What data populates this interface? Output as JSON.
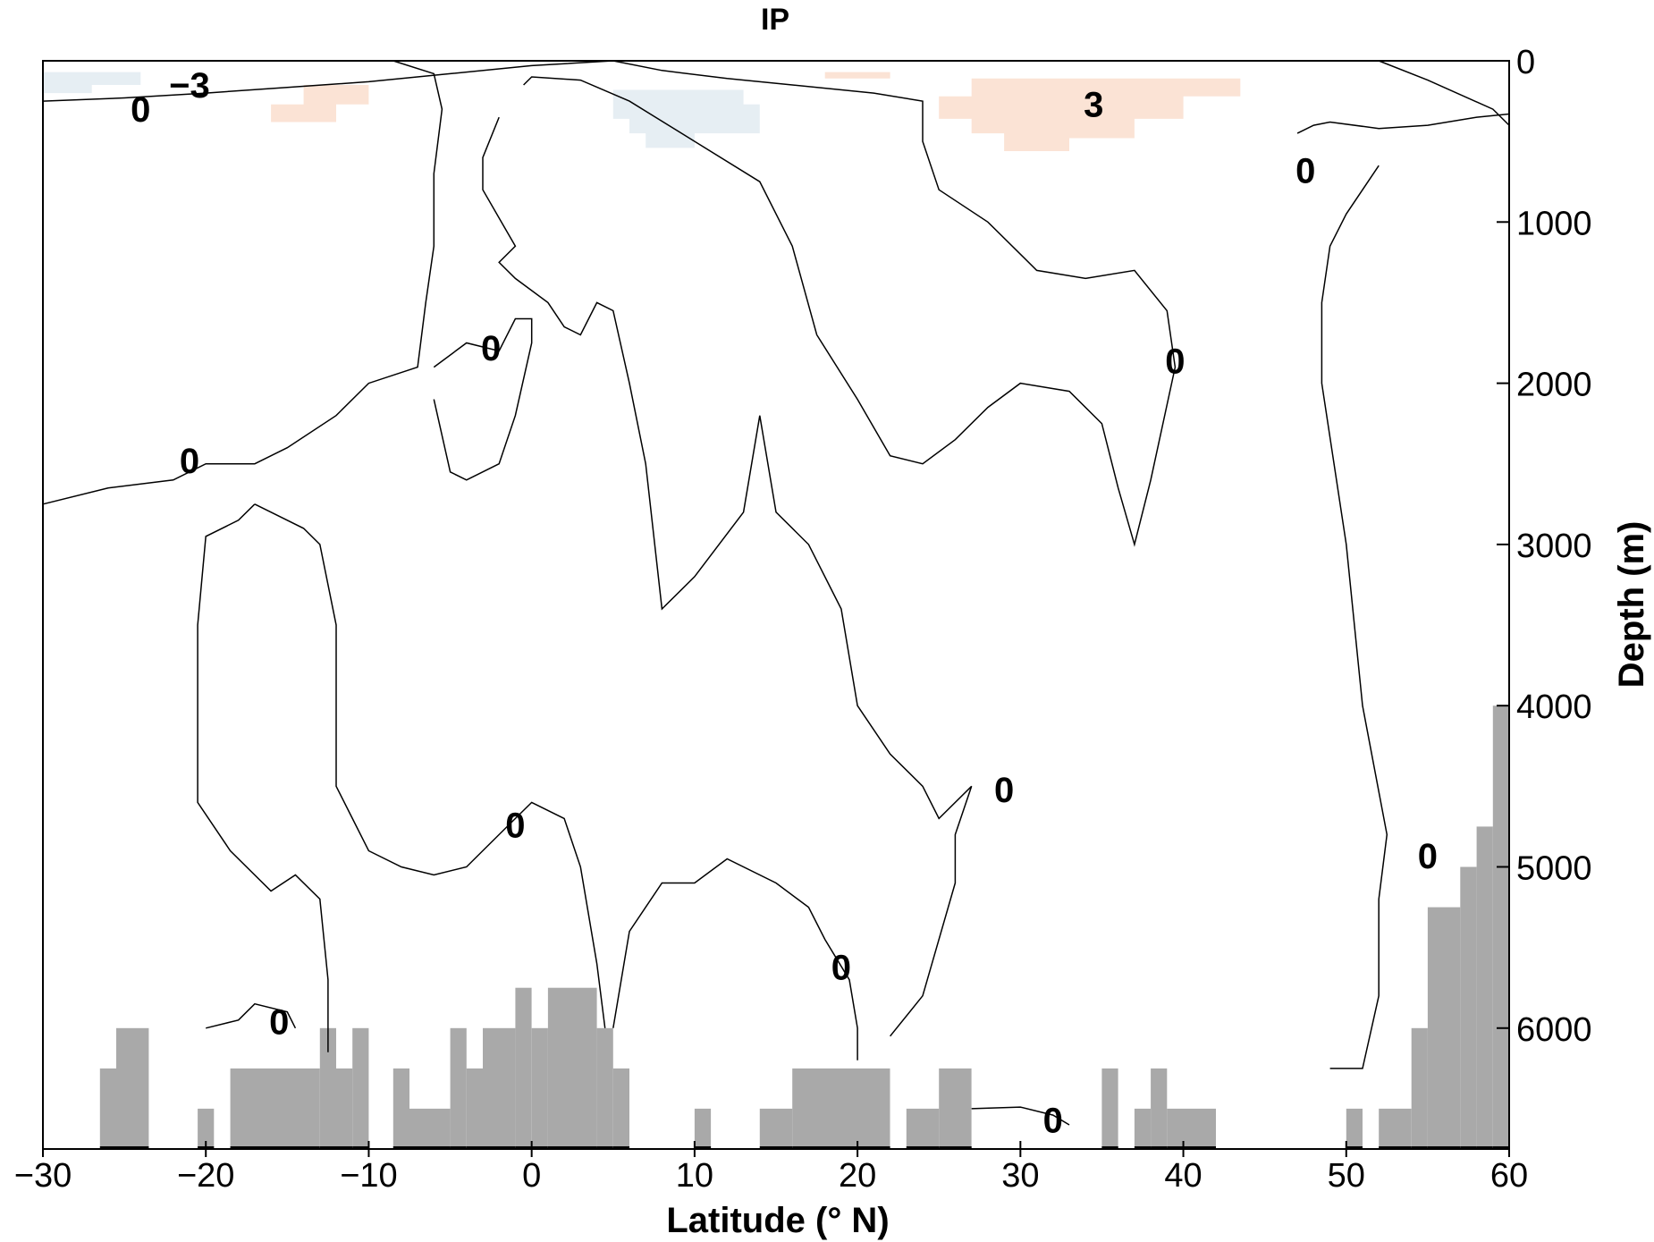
{
  "chart_data": {
    "type": "contour",
    "title": "IP",
    "xlabel": "Latitude (° N)",
    "ylabel": "Depth (m)",
    "xlim": [
      -30,
      60
    ],
    "ylim": [
      0,
      6750
    ],
    "y_axis_side": "right",
    "y_inverted": true,
    "x_ticks": [
      -30,
      -20,
      -10,
      0,
      10,
      20,
      30,
      40,
      50,
      60
    ],
    "x_tick_labels": [
      "−30",
      "−20",
      "−10",
      "0",
      "10",
      "20",
      "30",
      "40",
      "50",
      "60"
    ],
    "y_ticks": [
      0,
      1000,
      2000,
      3000,
      4000,
      5000,
      6000
    ],
    "y_tick_labels": [
      "0",
      "1000",
      "2000",
      "3000",
      "4000",
      "5000",
      "6000"
    ],
    "colors": {
      "positive_fill": "#fbe3d5",
      "negative_fill": "#e6eef3",
      "bathymetry": "#a9a9a9",
      "contour": "#000000"
    },
    "contour_labels": [
      {
        "text": "−3",
        "lat": -21,
        "depth": 150
      },
      {
        "text": "0",
        "lat": -24,
        "depth": 300
      },
      {
        "text": "3",
        "lat": 34.5,
        "depth": 270
      },
      {
        "text": "0",
        "lat": 47.5,
        "depth": 680
      },
      {
        "text": "0",
        "lat": -2.5,
        "depth": 1780
      },
      {
        "text": "0",
        "lat": 39.5,
        "depth": 1860
      },
      {
        "text": "0",
        "lat": -21,
        "depth": 2480
      },
      {
        "text": "0",
        "lat": 29,
        "depth": 4520
      },
      {
        "text": "0",
        "lat": -1,
        "depth": 4740
      },
      {
        "text": "0",
        "lat": 55,
        "depth": 4930
      },
      {
        "text": "0",
        "lat": 19,
        "depth": 5620
      },
      {
        "text": "0",
        "lat": -15.5,
        "depth": 5960
      },
      {
        "text": "0",
        "lat": 32,
        "depth": 6570
      }
    ],
    "anomaly_patches": [
      {
        "sign": "negative",
        "polygon": [
          [
            -30,
            70
          ],
          [
            -24,
            70
          ],
          [
            -24,
            150
          ],
          [
            -27,
            150
          ],
          [
            -27,
            200
          ],
          [
            -30,
            200
          ]
        ]
      },
      {
        "sign": "positive",
        "polygon": [
          [
            -14,
            150
          ],
          [
            -10,
            150
          ],
          [
            -10,
            270
          ],
          [
            -12,
            270
          ],
          [
            -12,
            380
          ],
          [
            -16,
            380
          ],
          [
            -16,
            270
          ],
          [
            -14,
            270
          ]
        ]
      },
      {
        "sign": "negative",
        "polygon": [
          [
            5,
            180
          ],
          [
            13,
            180
          ],
          [
            13,
            270
          ],
          [
            14,
            270
          ],
          [
            14,
            450
          ],
          [
            10,
            450
          ],
          [
            10,
            540
          ],
          [
            7,
            540
          ],
          [
            7,
            450
          ],
          [
            6,
            450
          ],
          [
            6,
            360
          ],
          [
            5,
            360
          ]
        ]
      },
      {
        "sign": "positive",
        "polygon": [
          [
            18,
            70
          ],
          [
            22,
            70
          ],
          [
            22,
            110
          ],
          [
            18,
            110
          ]
        ]
      },
      {
        "sign": "positive",
        "polygon": [
          [
            27,
            110
          ],
          [
            43.5,
            110
          ],
          [
            43.5,
            220
          ],
          [
            40,
            220
          ],
          [
            40,
            360
          ],
          [
            37,
            360
          ],
          [
            37,
            480
          ],
          [
            33,
            480
          ],
          [
            33,
            560
          ],
          [
            29,
            560
          ],
          [
            29,
            450
          ],
          [
            27,
            450
          ],
          [
            27,
            360
          ],
          [
            25,
            360
          ],
          [
            25,
            220
          ],
          [
            27,
            220
          ]
        ]
      }
    ],
    "bathymetry_bars": [
      {
        "lat_from": -26.5,
        "lat_to": -25.5,
        "depth_top": 6250
      },
      {
        "lat_from": -25.5,
        "lat_to": -23.5,
        "depth_top": 6000
      },
      {
        "lat_from": -20.5,
        "lat_to": -19.5,
        "depth_top": 6500
      },
      {
        "lat_from": -18.5,
        "lat_to": -13.0,
        "depth_top": 6250
      },
      {
        "lat_from": -13.0,
        "lat_to": -12.0,
        "depth_top": 6000
      },
      {
        "lat_from": -12.0,
        "lat_to": -11.0,
        "depth_top": 6250
      },
      {
        "lat_from": -11.0,
        "lat_to": -10.0,
        "depth_top": 6000
      },
      {
        "lat_from": -8.5,
        "lat_to": -7.5,
        "depth_top": 6250
      },
      {
        "lat_from": -7.5,
        "lat_to": -5.0,
        "depth_top": 6500
      },
      {
        "lat_from": -5.0,
        "lat_to": -4.0,
        "depth_top": 6000
      },
      {
        "lat_from": -4.0,
        "lat_to": -3.0,
        "depth_top": 6250
      },
      {
        "lat_from": -3.0,
        "lat_to": -1.0,
        "depth_top": 6000
      },
      {
        "lat_from": -1.0,
        "lat_to": 0.0,
        "depth_top": 5750
      },
      {
        "lat_from": 0.0,
        "lat_to": 1.0,
        "depth_top": 6000
      },
      {
        "lat_from": 1.0,
        "lat_to": 4.0,
        "depth_top": 5750
      },
      {
        "lat_from": 4.0,
        "lat_to": 5.0,
        "depth_top": 6000
      },
      {
        "lat_from": 5.0,
        "lat_to": 6.0,
        "depth_top": 6250
      },
      {
        "lat_from": 10.0,
        "lat_to": 11.0,
        "depth_top": 6500
      },
      {
        "lat_from": 14.0,
        "lat_to": 16.0,
        "depth_top": 6500
      },
      {
        "lat_from": 16.0,
        "lat_to": 22.0,
        "depth_top": 6250
      },
      {
        "lat_from": 23.0,
        "lat_to": 25.0,
        "depth_top": 6500
      },
      {
        "lat_from": 25.0,
        "lat_to": 27.0,
        "depth_top": 6250
      },
      {
        "lat_from": 35.0,
        "lat_to": 36.0,
        "depth_top": 6250
      },
      {
        "lat_from": 37.0,
        "lat_to": 38.0,
        "depth_top": 6500
      },
      {
        "lat_from": 38.0,
        "lat_to": 39.0,
        "depth_top": 6250
      },
      {
        "lat_from": 39.0,
        "lat_to": 42.0,
        "depth_top": 6500
      },
      {
        "lat_from": 50.0,
        "lat_to": 51.0,
        "depth_top": 6500
      },
      {
        "lat_from": 52.0,
        "lat_to": 54.0,
        "depth_top": 6500
      },
      {
        "lat_from": 54.0,
        "lat_to": 55.0,
        "depth_top": 6000
      },
      {
        "lat_from": 55.0,
        "lat_to": 57.0,
        "depth_top": 5250
      },
      {
        "lat_from": 57.0,
        "lat_to": 58.0,
        "depth_top": 5000
      },
      {
        "lat_from": 58.0,
        "lat_to": 59.0,
        "depth_top": 4750
      },
      {
        "lat_from": 59.0,
        "lat_to": 60.0,
        "depth_top": 4000
      }
    ],
    "zero_contours": [
      [
        [
          -30,
          250
        ],
        [
          -25,
          230
        ],
        [
          -20,
          200
        ],
        [
          -15,
          165
        ],
        [
          -10,
          130
        ],
        [
          -5,
          80
        ],
        [
          0,
          30
        ],
        [
          5,
          0
        ]
      ],
      [
        [
          -8.5,
          0
        ],
        [
          -6,
          80
        ],
        [
          -5.5,
          300
        ],
        [
          -6,
          700
        ],
        [
          -6,
          1150
        ],
        [
          -6.5,
          1500
        ],
        [
          -7,
          1900
        ],
        [
          -10,
          2000
        ],
        [
          -12,
          2200
        ],
        [
          -15,
          2400
        ],
        [
          -17,
          2500
        ],
        [
          -20,
          2500
        ],
        [
          -22,
          2600
        ],
        [
          -26,
          2650
        ],
        [
          -30,
          2750
        ]
      ],
      [
        [
          -6,
          1900
        ],
        [
          -4,
          1750
        ],
        [
          -2,
          1800
        ],
        [
          -1,
          1600
        ],
        [
          0,
          1600
        ],
        [
          0,
          1750
        ],
        [
          -1,
          2200
        ],
        [
          -2,
          2500
        ],
        [
          -4,
          2600
        ],
        [
          -5,
          2550
        ],
        [
          -6,
          2100
        ]
      ],
      [
        [
          -0.5,
          150
        ],
        [
          0,
          100
        ],
        [
          3,
          120
        ],
        [
          6,
          250
        ],
        [
          10,
          500
        ],
        [
          14,
          750
        ],
        [
          16,
          1150
        ],
        [
          17.5,
          1700
        ],
        [
          20,
          2100
        ],
        [
          22,
          2450
        ],
        [
          24,
          2500
        ],
        [
          26,
          2350
        ],
        [
          28,
          2150
        ],
        [
          30,
          2000
        ],
        [
          33,
          2050
        ],
        [
          35,
          2250
        ],
        [
          36,
          2650
        ],
        [
          37,
          3000
        ],
        [
          38,
          2600
        ],
        [
          39.5,
          1900
        ],
        [
          39,
          1550
        ],
        [
          37,
          1300
        ],
        [
          34,
          1350
        ],
        [
          31,
          1300
        ],
        [
          28,
          1000
        ],
        [
          25,
          800
        ],
        [
          24,
          500
        ],
        [
          24,
          250
        ],
        [
          21,
          200
        ],
        [
          16,
          150
        ],
        [
          12,
          110
        ],
        [
          8,
          60
        ],
        [
          5,
          0
        ]
      ],
      [
        [
          -2,
          350
        ],
        [
          -3,
          600
        ],
        [
          -3,
          800
        ],
        [
          -1,
          1150
        ],
        [
          -2,
          1250
        ],
        [
          -1,
          1350
        ],
        [
          1,
          1500
        ],
        [
          2,
          1650
        ],
        [
          3,
          1700
        ],
        [
          4,
          1500
        ],
        [
          5,
          1550
        ],
        [
          6,
          2000
        ],
        [
          7,
          2500
        ],
        [
          8,
          3400
        ],
        [
          10,
          3200
        ],
        [
          13,
          2800
        ],
        [
          14,
          2200
        ],
        [
          15,
          2800
        ],
        [
          17,
          3000
        ],
        [
          19,
          3400
        ],
        [
          20,
          4000
        ],
        [
          22,
          4300
        ],
        [
          24,
          4500
        ],
        [
          25,
          4700
        ],
        [
          27,
          4500
        ],
        [
          26,
          4800
        ],
        [
          26,
          5100
        ],
        [
          24,
          5800
        ],
        [
          22,
          6050
        ]
      ],
      [
        [
          -17,
          2750
        ],
        [
          -16,
          2800
        ],
        [
          -14,
          2900
        ],
        [
          -13,
          3000
        ],
        [
          -12,
          3500
        ],
        [
          -12,
          4000
        ],
        [
          -12,
          4500
        ],
        [
          -11,
          4700
        ],
        [
          -10,
          4900
        ],
        [
          -8,
          5000
        ],
        [
          -6,
          5050
        ],
        [
          -4,
          5000
        ],
        [
          -2,
          4800
        ],
        [
          -1,
          4700
        ],
        [
          0,
          4600
        ],
        [
          2,
          4700
        ],
        [
          3,
          5000
        ],
        [
          4,
          5600
        ],
        [
          4.5,
          6000
        ]
      ],
      [
        [
          -17,
          2750
        ],
        [
          -18,
          2850
        ],
        [
          -20,
          2950
        ],
        [
          -20.5,
          3500
        ],
        [
          -20.5,
          4000
        ],
        [
          -20.5,
          4600
        ],
        [
          -18.5,
          4900
        ],
        [
          -16,
          5150
        ],
        [
          -14.5,
          5050
        ],
        [
          -13,
          5200
        ],
        [
          -12.5,
          5700
        ],
        [
          -12.5,
          6150
        ]
      ],
      [
        [
          5,
          6000
        ],
        [
          6,
          5400
        ],
        [
          8,
          5100
        ],
        [
          10,
          5100
        ],
        [
          12,
          4950
        ],
        [
          15,
          5100
        ],
        [
          17,
          5250
        ],
        [
          18,
          5450
        ],
        [
          19.5,
          5700
        ],
        [
          20,
          6000
        ],
        [
          20,
          6200
        ]
      ],
      [
        [
          -20,
          6000
        ],
        [
          -18,
          5950
        ],
        [
          -17,
          5850
        ],
        [
          -15,
          5900
        ],
        [
          -14.5,
          6000
        ]
      ],
      [
        [
          27,
          6500
        ],
        [
          30,
          6490
        ],
        [
          32,
          6540
        ],
        [
          33,
          6600
        ]
      ],
      [
        [
          52,
          0
        ],
        [
          55,
          120
        ],
        [
          59,
          300
        ],
        [
          60,
          400
        ]
      ],
      [
        [
          52,
          650
        ],
        [
          50,
          950
        ],
        [
          49,
          1150
        ],
        [
          48.5,
          1500
        ],
        [
          48.5,
          2000
        ],
        [
          50,
          3000
        ],
        [
          51,
          4000
        ],
        [
          52.5,
          4800
        ],
        [
          52,
          5200
        ],
        [
          52,
          5800
        ],
        [
          51,
          6250
        ],
        [
          49,
          6250
        ]
      ],
      [
        [
          47,
          450
        ],
        [
          48,
          400
        ],
        [
          49,
          380
        ],
        [
          52,
          420
        ],
        [
          55,
          400
        ],
        [
          58,
          350
        ],
        [
          60,
          330
        ]
      ]
    ]
  }
}
